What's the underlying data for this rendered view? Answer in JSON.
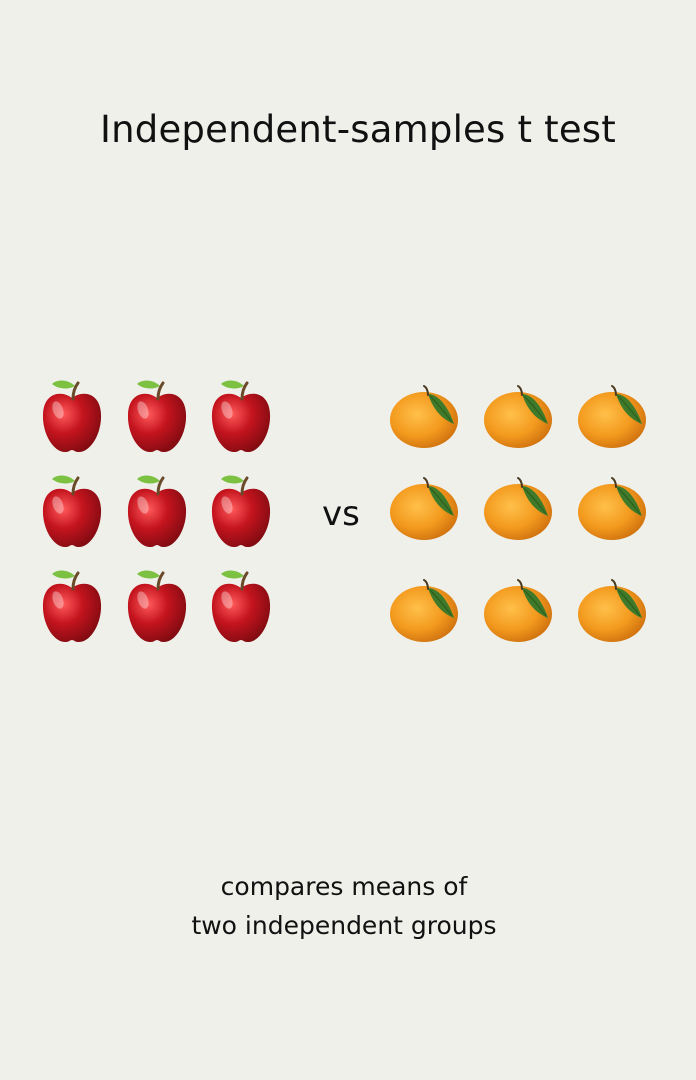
{
  "title": "Independent-samples t test",
  "vs_label": "vs",
  "caption": {
    "line1": "compares means of",
    "line2": "two independent groups"
  },
  "groups": [
    {
      "name": "apples",
      "icon": "apple-icon",
      "count": 9,
      "colors": {
        "body": "#c4141e",
        "leaf": "#7cc142",
        "stem": "#6b4a2a"
      }
    },
    {
      "name": "oranges",
      "icon": "orange-icon",
      "count": 9,
      "colors": {
        "body": "#f39a1e",
        "leaf": "#3f7a2a"
      }
    }
  ]
}
